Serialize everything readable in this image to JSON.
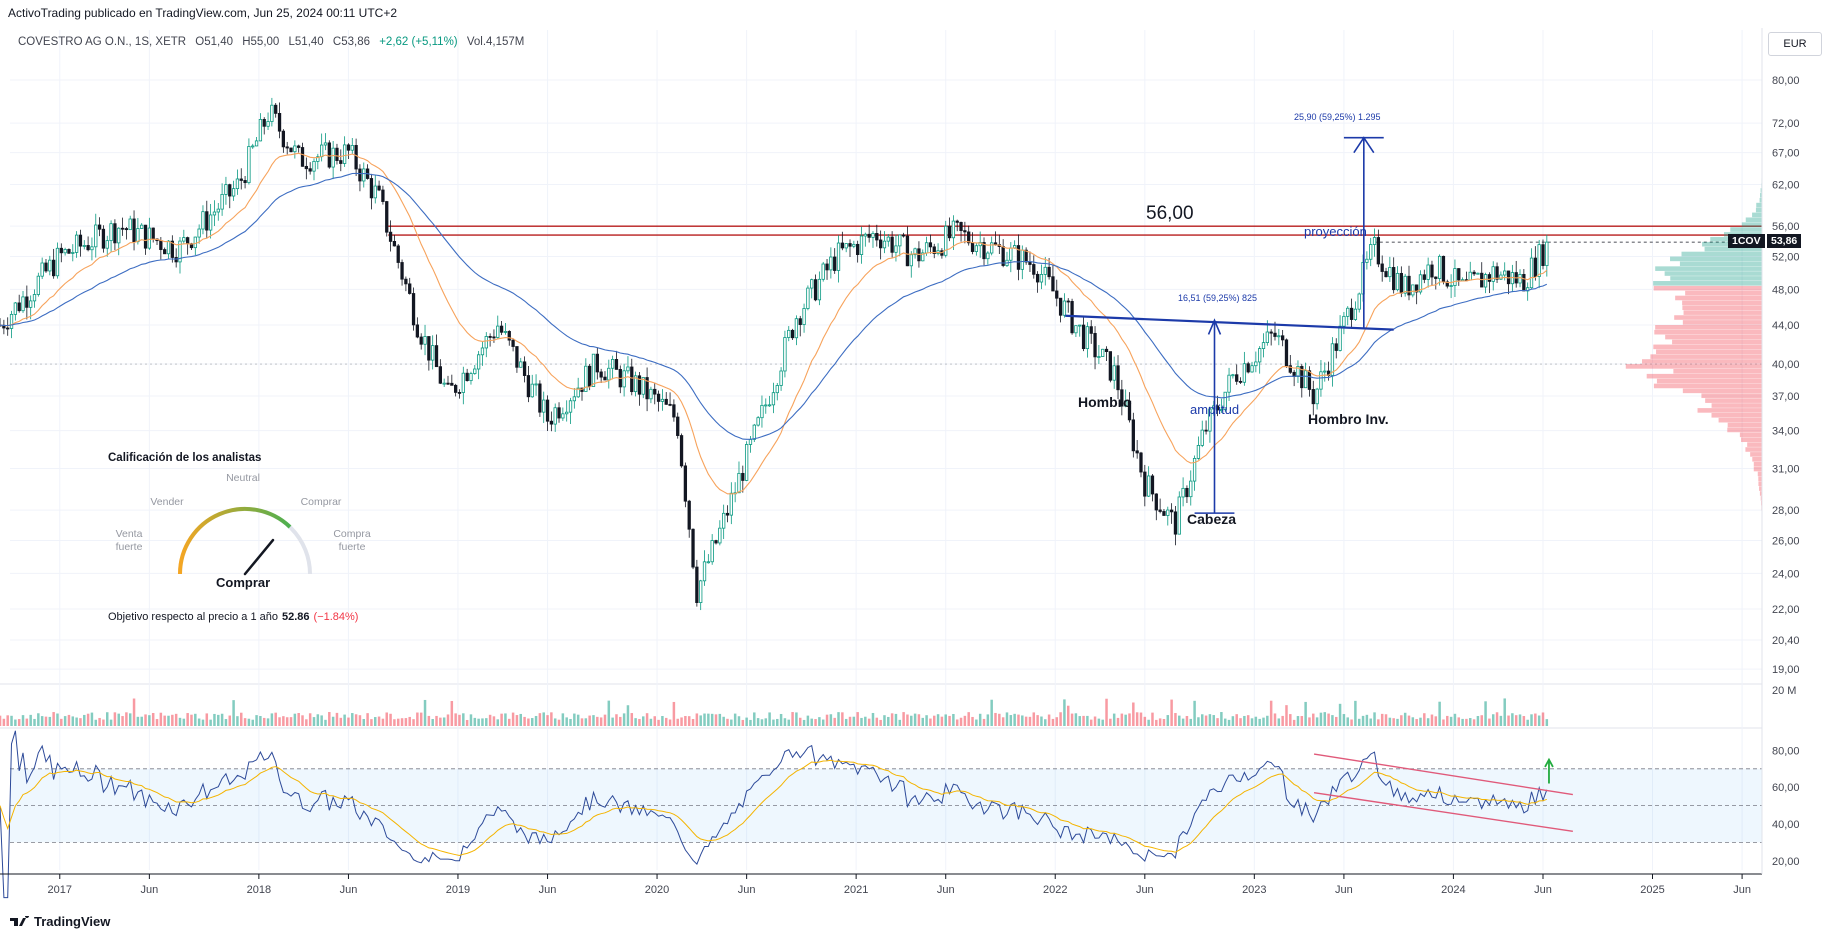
{
  "header": {
    "publisher": "ActivoTrading publicado en TradingView.com, Jun 25, 2024 00:11 UTC+2"
  },
  "symbol_bar": {
    "name": "COVESTRO AG O.N., 1S, XETR",
    "open": "O51,40",
    "high": "H55,00",
    "low": "L51,40",
    "close": "C53,86",
    "change": "+2,62 (+5,11%)",
    "volume": "Vol.4,157M"
  },
  "currency": "EUR",
  "price_tag": {
    "symbol": "1COV",
    "price": "53,86"
  },
  "footer": {
    "brand": "TradingView"
  },
  "rating_widget": {
    "title": "Calificación de los analistas",
    "labels": {
      "strong_sell": "Venta fuerte",
      "sell": "Vender",
      "neutral": "Neutral",
      "buy": "Comprar",
      "strong_buy": "Compra fuerte"
    },
    "verdict": "Comprar",
    "gauge_value": 0.72,
    "target_label": "Objetivo respecto al precio a 1 año",
    "target_price": "52.86",
    "target_change": "(−1.84%)"
  },
  "annotations": {
    "level": "56,00",
    "proj_label": "proyección",
    "proj_measure": "25,90 (59,25%) 1.295",
    "amp_label": "amplitud",
    "amp_measure": "16,51 (59,25%) 825",
    "left_shoulder": "Hombro",
    "head": "Cabeza",
    "right_shoulder": "Hombro Inv."
  },
  "colors": {
    "up": "#089981",
    "down": "#131722",
    "ema_fast": "#f7a35c",
    "ema_slow": "#3d6dc2",
    "resistance": "#b71c1c",
    "pattern": "#1c3aa9",
    "rsi": "#2d4a99",
    "rsi_ma": "#f4b400",
    "channel": "#e05a7a"
  },
  "chart_data": [
    {
      "type": "candlestick",
      "timeframe": "1S",
      "x_ticks": [
        "2017",
        "Jun",
        "2018",
        "Jun",
        "2019",
        "Jun",
        "2020",
        "Jun",
        "2021",
        "Jun",
        "2022",
        "Jun",
        "2023",
        "Jun",
        "2024",
        "Jun",
        "2025",
        "Jun"
      ],
      "y_ticks": [
        "80,00",
        "72,00",
        "67,00",
        "62,00",
        "56,00",
        "52,00",
        "48,00",
        "44,00",
        "40,00",
        "37,00",
        "34,00",
        "31,00",
        "28,00",
        "26,00",
        "24,00",
        "22,00",
        "20,40",
        "19,00"
      ],
      "y_scale": "log",
      "ylim": [
        18.5,
        84
      ],
      "path_dates": [
        2016.7,
        2017.0,
        2017.3,
        2017.6,
        2017.9,
        2018.05,
        2018.2,
        2018.45,
        2018.6,
        2018.8,
        2018.95,
        2019.2,
        2019.45,
        2019.7,
        2019.9,
        2020.1,
        2020.2,
        2020.3,
        2020.5,
        2020.7,
        2020.9,
        2021.1,
        2021.3,
        2021.5,
        2021.7,
        2021.9,
        2022.1,
        2022.3,
        2022.45,
        2022.6,
        2022.75,
        2022.9,
        2023.1,
        2023.3,
        2023.45,
        2023.6,
        2023.75,
        2023.9,
        2024.05,
        2024.2,
        2024.35,
        2024.48
      ],
      "path_prices": [
        44,
        52,
        56,
        53,
        62,
        74,
        66,
        67,
        60,
        44,
        37,
        44,
        35,
        40,
        38,
        35,
        23,
        26,
        34,
        45,
        52,
        55,
        52,
        55,
        53,
        51,
        44,
        39,
        30,
        27,
        34,
        39,
        43,
        37,
        44,
        53,
        48,
        51,
        48,
        50,
        49,
        53.86
      ],
      "ema_fast": "orange moving average",
      "ema_slow": "blue moving average",
      "resistance_lines": [
        56.0,
        54.8
      ]
    },
    {
      "type": "bar",
      "name": "volume",
      "axis_label": "20 M"
    },
    {
      "type": "line",
      "name": "RSI",
      "y_ticks": [
        "80,00",
        "60,00",
        "40,00",
        "20,00"
      ],
      "ylim": [
        15,
        90
      ],
      "bands": [
        70,
        50,
        30
      ]
    }
  ]
}
